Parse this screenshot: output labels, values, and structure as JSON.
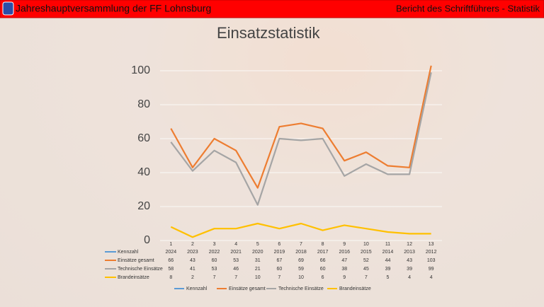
{
  "header": {
    "title": "Jahreshauptversammlung der FF Lohnsburg",
    "section": "Bericht des Schriftführers - Statistik"
  },
  "chart_data": {
    "type": "line",
    "title": "Einsatzstatistik",
    "categories": [
      "1",
      "2",
      "3",
      "4",
      "5",
      "6",
      "7",
      "8",
      "9",
      "10",
      "11",
      "12",
      "13"
    ],
    "series": [
      {
        "name": "Kennzahl",
        "color": "#5b9bd5",
        "values": [
          2024,
          2023,
          2022,
          2021,
          2020,
          2019,
          2018,
          2017,
          2016,
          2015,
          2014,
          2013,
          2012
        ]
      },
      {
        "name": "Einsätze gesamt",
        "color": "#ed7d31",
        "values": [
          66,
          43,
          60,
          53,
          31,
          67,
          69,
          66,
          47,
          52,
          44,
          43,
          103
        ]
      },
      {
        "name": "Technische Einsätze",
        "color": "#a5a5a5",
        "values": [
          58,
          41,
          53,
          46,
          21,
          60,
          59,
          60,
          38,
          45,
          39,
          39,
          99
        ]
      },
      {
        "name": "Brandeinsätze",
        "color": "#ffc000",
        "values": [
          8,
          2,
          7,
          7,
          10,
          7,
          10,
          6,
          9,
          7,
          5,
          4,
          4
        ]
      }
    ],
    "ylim": [
      0,
      105
    ],
    "yticks": [
      0,
      20,
      40,
      60,
      80,
      100
    ],
    "grid": true
  }
}
